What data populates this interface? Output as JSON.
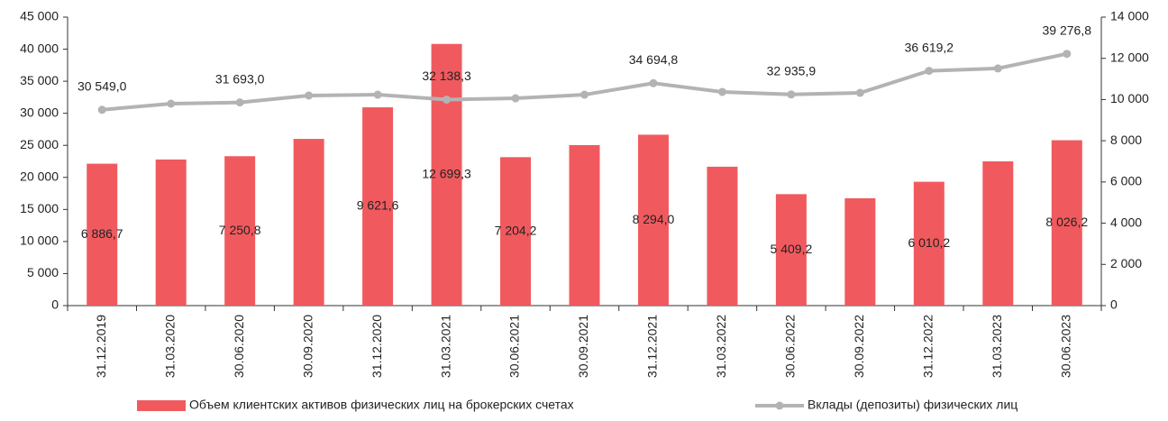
{
  "chart_data": {
    "type": "bar+line",
    "categories": [
      "31.12.2019",
      "31.03.2020",
      "30.06.2020",
      "30.09.2020",
      "31.12.2020",
      "31.03.2021",
      "30.06.2021",
      "30.09.2021",
      "31.12.2021",
      "31.03.2022",
      "30.06.2022",
      "30.09.2022",
      "31.12.2022",
      "31.03.2023",
      "30.06.2023"
    ],
    "series": [
      {
        "name": "Объем клиентских активов физических лиц на брокерских счетах",
        "type": "bar",
        "axis": "y2",
        "color": "#f05a5e",
        "values": [
          6886.7,
          7090,
          7250.8,
          8090,
          9621.6,
          12699.3,
          7204.2,
          7790,
          8294.0,
          6740,
          5409.2,
          5210,
          6010.2,
          7000,
          8026.2
        ],
        "value_labels": [
          "6 886,7",
          null,
          "7 250,8",
          null,
          "9 621,6",
          "12 699,3",
          "7 204,2",
          null,
          "8 294,0",
          null,
          "5 409,2",
          null,
          "6 010,2",
          null,
          "8 026,2"
        ]
      },
      {
        "name": "Вклады (депозиты) физических лиц",
        "type": "line",
        "color": "#b3b3b3",
        "values": [
          30549.0,
          31500,
          31693.0,
          32770,
          32900,
          32138.3,
          32340,
          32900,
          34694.8,
          33330,
          32935.9,
          33190,
          36619.2,
          37000,
          39276.8
        ],
        "value_labels": [
          "30 549,0",
          null,
          "31 693,0",
          null,
          null,
          "32 138,3",
          null,
          null,
          "34 694,8",
          null,
          "32 935,9",
          null,
          "36 619,2",
          null,
          "39 276,8"
        ]
      }
    ],
    "ylim": [
      0,
      45000
    ],
    "yticks": [
      0,
      {
        "value": 5000,
        "label": "5 000"
      },
      {
        "value": 10000,
        "label": "10 000"
      },
      {
        "value": 15000,
        "label": "15 000"
      },
      {
        "value": 20000,
        "label": "20 000"
      },
      {
        "value": 25000,
        "label": "25 000"
      },
      {
        "value": 30000,
        "label": "30 000"
      },
      {
        "value": 35000,
        "label": "35 000"
      },
      {
        "value": 40000,
        "label": "40 000"
      },
      {
        "value": 45000,
        "label": "45 000"
      }
    ],
    "y2lim": [
      0,
      14000
    ],
    "y2ticks": [
      0,
      {
        "value": 2000,
        "label": "2 000"
      },
      {
        "value": 4000,
        "label": "4 000"
      },
      {
        "value": 6000,
        "label": "6 000"
      },
      {
        "value": 8000,
        "label": "8 000"
      },
      {
        "value": 10000,
        "label": "10 000"
      },
      {
        "value": 12000,
        "label": "12 000"
      },
      {
        "value": 14000,
        "label": "14 000"
      }
    ],
    "legend": "bottom"
  }
}
